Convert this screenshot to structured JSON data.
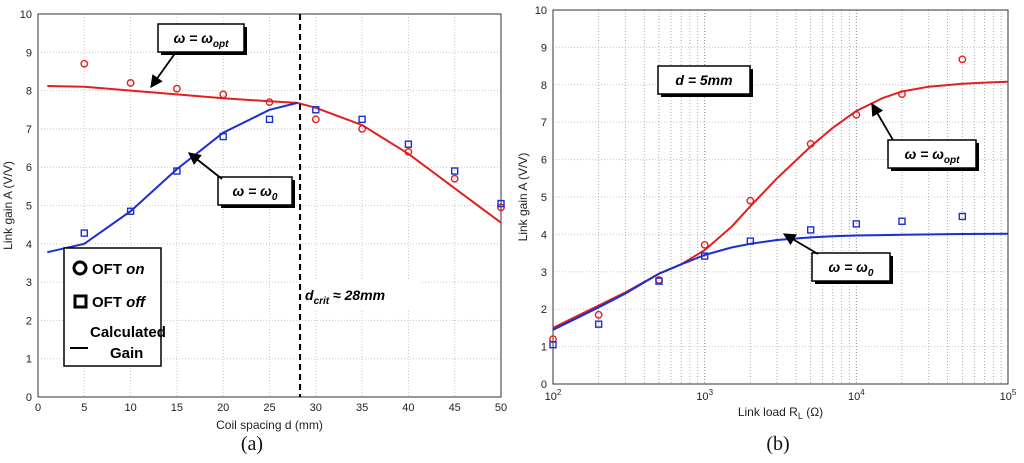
{
  "colors": {
    "on": "#e02020",
    "off": "#1a2fd0",
    "calc_a_on": "#e02020",
    "calc_a_off": "#1a2fd0",
    "grid": "#c8c8c8",
    "grid_minor": "#9a9a9a"
  },
  "chart_data": [
    {
      "type": "scatter",
      "panel_label": "(a)",
      "xlabel": "Coil spacing d (mm)",
      "ylabel": "Link gain A (V/V)",
      "xlim": [
        0,
        50
      ],
      "ylim": [
        0,
        10
      ],
      "xticks": [
        "0",
        "5",
        "10",
        "15",
        "20",
        "25",
        "30",
        "35",
        "40",
        "45",
        "50"
      ],
      "yticks": [
        "0",
        "1",
        "2",
        "3",
        "4",
        "5",
        "6",
        "7",
        "8",
        "9",
        "10"
      ],
      "grid": true,
      "series": [
        {
          "name": "OFT on",
          "kind": "points",
          "marker": "circle",
          "color": "#e02020",
          "x": [
            5,
            10,
            15,
            20,
            25,
            30,
            35,
            40,
            45,
            50
          ],
          "y": [
            8.7,
            8.2,
            8.05,
            7.9,
            7.7,
            7.25,
            7.0,
            6.4,
            5.7,
            4.95
          ]
        },
        {
          "name": "OFT off",
          "kind": "points",
          "marker": "square",
          "color": "#1a2fd0",
          "x": [
            5,
            10,
            15,
            20,
            25,
            30,
            35,
            40,
            45,
            50
          ],
          "y": [
            4.28,
            4.85,
            5.9,
            6.8,
            7.25,
            7.5,
            7.25,
            6.6,
            5.9,
            5.05
          ]
        },
        {
          "name": "Calculated Gain",
          "kind": "line",
          "color": "#e02020",
          "x": [
            1,
            5,
            10,
            15,
            20,
            25,
            28,
            30,
            35,
            40,
            45,
            50
          ],
          "y": [
            8.12,
            8.1,
            8.0,
            7.9,
            7.8,
            7.72,
            7.68,
            7.55,
            7.1,
            6.35,
            5.45,
            4.55
          ]
        },
        {
          "name": "Calculated Gain",
          "kind": "line",
          "color": "#1a2fd0",
          "x": [
            1,
            5,
            10,
            15,
            20,
            25,
            28
          ],
          "y": [
            3.78,
            4.0,
            4.85,
            5.95,
            6.9,
            7.5,
            7.68
          ]
        }
      ],
      "vline": {
        "x": 28.3,
        "label": "d",
        "label_sub": "crit",
        "label_rest": " ≈ 28mm"
      },
      "annotations": [
        {
          "main": "ω = ω",
          "sub": "opt"
        },
        {
          "main": "ω = ω",
          "sub": "0"
        }
      ],
      "legend": {
        "placement": "bottom-left",
        "items": [
          {
            "text": "OFT ",
            "ital": "on"
          },
          {
            "text": "OFT ",
            "ital": "off"
          },
          {
            "text": "Calculated",
            "text2": "Gain"
          }
        ]
      }
    },
    {
      "type": "scatter",
      "panel_label": "(b)",
      "xlabel": "Link load R",
      "xlabel_sub": "L",
      "xlabel_rest": " (Ω)",
      "ylabel": "Link gain A (V/V)",
      "xscale": "log",
      "xlim": [
        100,
        100000
      ],
      "ylim": [
        0,
        10
      ],
      "xticks": [
        {
          "base": "10",
          "exp": "2"
        },
        {
          "base": "10",
          "exp": "3"
        },
        {
          "base": "10",
          "exp": "4"
        },
        {
          "base": "10",
          "exp": "5"
        }
      ],
      "yticks": [
        "0",
        "1",
        "2",
        "3",
        "4",
        "5",
        "6",
        "7",
        "8",
        "9",
        "10"
      ],
      "grid": true,
      "series": [
        {
          "name": "OFT on",
          "kind": "points",
          "marker": "circle",
          "color": "#e02020",
          "x": [
            100,
            200,
            500,
            1000,
            2000,
            5000,
            10000,
            20000,
            50000
          ],
          "y": [
            1.2,
            1.85,
            2.78,
            3.72,
            4.9,
            6.42,
            7.2,
            7.75,
            8.68
          ]
        },
        {
          "name": "OFT off",
          "kind": "points",
          "marker": "square",
          "color": "#1a2fd0",
          "x": [
            100,
            200,
            500,
            1000,
            2000,
            5000,
            10000,
            20000,
            50000
          ],
          "y": [
            1.05,
            1.6,
            2.75,
            3.42,
            3.82,
            4.12,
            4.28,
            4.35,
            4.48
          ]
        },
        {
          "name": "Calculated Gain",
          "kind": "line",
          "color": "#e02020",
          "x": [
            100,
            150,
            200,
            300,
            500,
            700,
            1000,
            1500,
            2000,
            3000,
            5000,
            7000,
            10000,
            15000,
            20000,
            30000,
            50000,
            70000,
            100000
          ],
          "y": [
            1.5,
            1.85,
            2.1,
            2.45,
            2.95,
            3.2,
            3.58,
            4.2,
            4.75,
            5.5,
            6.35,
            6.85,
            7.3,
            7.65,
            7.82,
            7.95,
            8.03,
            8.06,
            8.08
          ]
        },
        {
          "name": "Calculated Gain",
          "kind": "line",
          "color": "#1a2fd0",
          "x": [
            100,
            150,
            200,
            300,
            500,
            700,
            1000,
            1500,
            2000,
            3000,
            5000,
            7000,
            10000,
            20000,
            50000,
            100000
          ],
          "y": [
            1.45,
            1.8,
            2.05,
            2.42,
            2.95,
            3.2,
            3.45,
            3.65,
            3.75,
            3.85,
            3.92,
            3.95,
            3.97,
            3.99,
            4.01,
            4.02
          ]
        }
      ],
      "annotations": [
        {
          "main": "d = 5mm"
        },
        {
          "main": "ω = ω",
          "sub": "opt"
        },
        {
          "main": "ω = ω",
          "sub": "0"
        }
      ]
    }
  ]
}
